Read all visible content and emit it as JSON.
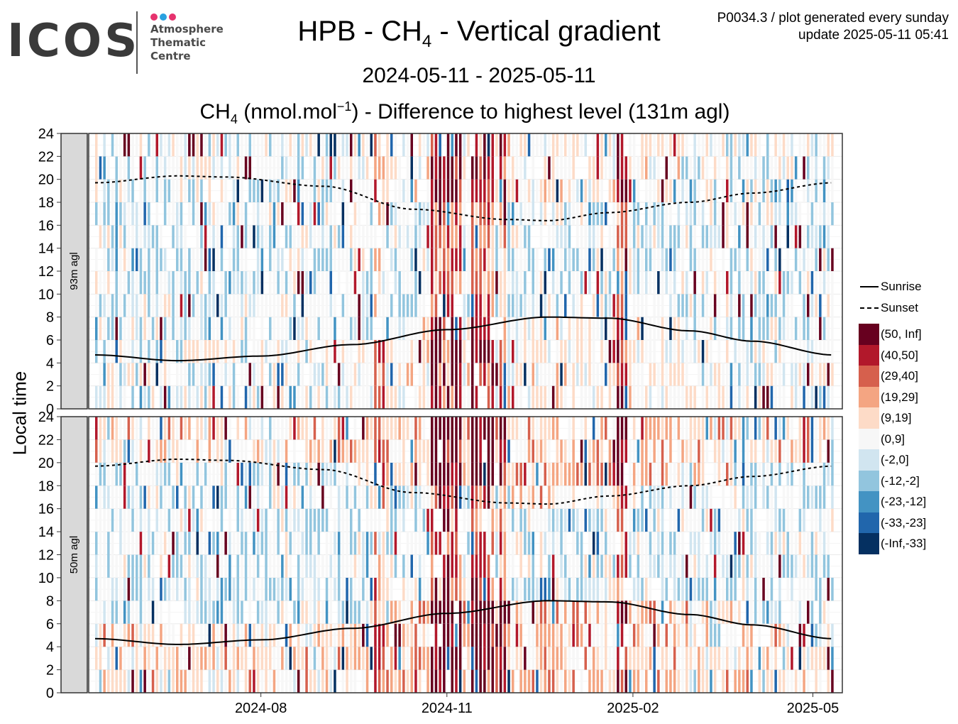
{
  "logo": {
    "text": "ICOS",
    "line1": "Atmosphere",
    "line2": "Thematic",
    "line3": "Centre",
    "dot_colors": [
      "#e6336e",
      "#2aa1e0",
      "#e6336e"
    ]
  },
  "header": {
    "title_pre": "HPB - CH",
    "title_sub": "4",
    "title_post": " - Vertical gradient",
    "date_range": "2024-05-11 - 2025-05-11",
    "subtitle_pre": "CH",
    "subtitle_sub": "4",
    "subtitle_mid": " (nmol.mol",
    "subtitle_sup": "−1",
    "subtitle_post": ") - Difference to highest level (131m agl)",
    "corner_line1": "P0034.3 / plot generated every sunday",
    "corner_line2": "update  2025-05-11 05:41"
  },
  "chart_data": {
    "type": "heatmap",
    "ylabel": "Local time",
    "x_range": [
      "2024-05-11",
      "2025-05-11"
    ],
    "x_ticks": [
      "2024-08",
      "2024-11",
      "2025-02",
      "2025-05"
    ],
    "x_tick_dates": [
      "2024-08-01",
      "2024-11-01",
      "2025-02-01",
      "2025-05-01"
    ],
    "y_range": [
      0,
      24
    ],
    "y_ticks": [
      "0",
      "2",
      "4",
      "6",
      "8",
      "10",
      "12",
      "14",
      "16",
      "18",
      "20",
      "22",
      "24"
    ],
    "panels": [
      {
        "label": "93m agl"
      },
      {
        "label": "50m agl"
      }
    ],
    "categories": [
      {
        "label": "(50, Inf]",
        "color": "#67001f"
      },
      {
        "label": "(40,50]",
        "color": "#b2182b"
      },
      {
        "label": "(29,40]",
        "color": "#d6604d"
      },
      {
        "label": "(19,29]",
        "color": "#f4a582"
      },
      {
        "label": "(9,19]",
        "color": "#fddbc7"
      },
      {
        "label": "(0,9]",
        "color": "#f7f7f7"
      },
      {
        "label": "(-2,0]",
        "color": "#d1e5f0"
      },
      {
        "label": "(-12,-2]",
        "color": "#92c5de"
      },
      {
        "label": "(-23,-12]",
        "color": "#4393c3"
      },
      {
        "label": "(-33,-23]",
        "color": "#2166ac"
      },
      {
        "label": "(-Inf,-33]",
        "color": "#053061"
      }
    ],
    "lines": [
      {
        "name": "Sunrise",
        "style": "solid",
        "x": [
          "2024-05-11",
          "2024-06-21",
          "2024-08-01",
          "2024-09-15",
          "2024-11-01",
          "2024-12-21",
          "2025-01-20",
          "2025-03-01",
          "2025-04-01",
          "2025-05-11"
        ],
        "y": [
          4.7,
          4.2,
          4.6,
          5.6,
          6.9,
          8.0,
          7.9,
          6.8,
          5.9,
          4.7
        ]
      },
      {
        "name": "Sunset",
        "style": "dashed",
        "x": [
          "2024-05-11",
          "2024-06-21",
          "2024-07-15",
          "2024-09-01",
          "2024-10-15",
          "2024-12-01",
          "2024-12-21",
          "2025-01-20",
          "2025-03-01",
          "2025-04-01",
          "2025-05-11"
        ],
        "y": [
          19.7,
          20.3,
          20.2,
          19.4,
          17.4,
          16.5,
          16.4,
          17.1,
          18.0,
          18.8,
          19.7
        ]
      }
    ]
  }
}
